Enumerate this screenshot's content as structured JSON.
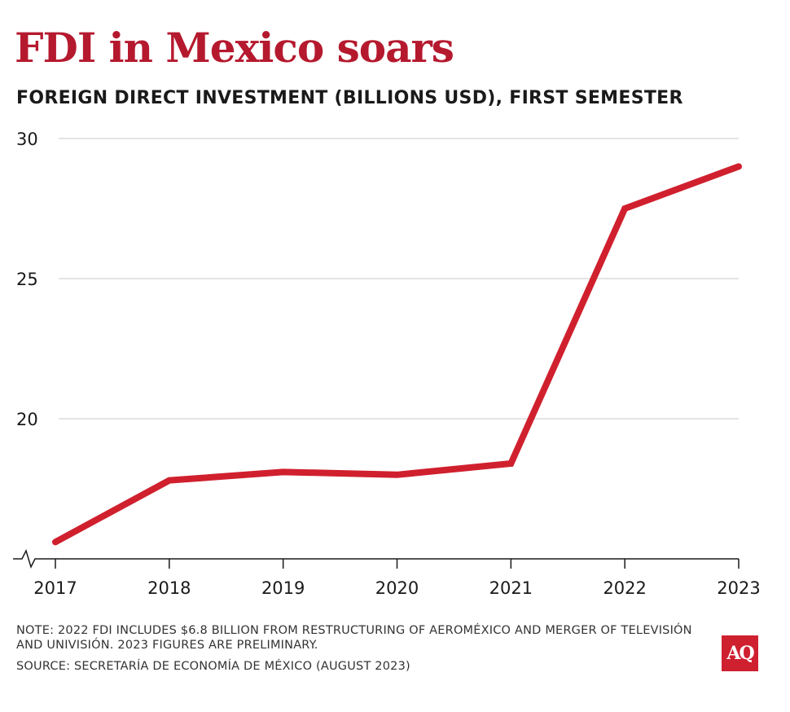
{
  "header": {
    "title": "FDI in Mexico soars",
    "subtitle": "FOREIGN DIRECT INVESTMENT (BILLIONS USD), FIRST SEMESTER"
  },
  "footer": {
    "note": "NOTE: 2022 FDI INCLUDES $6.8 BILLION FROM RESTRUCTURING OF AEROMÉXICO AND MERGER OF TELEVISIÓN AND UNIVISIÓN. 2023 FIGURES ARE PRELIMINARY.",
    "source": "SOURCE: SECRETARÍA DE ECONOMÍA DE MÉXICO (AUGUST 2023)",
    "logo_text": "AQ"
  },
  "colors": {
    "title": "#b5192e",
    "line": "#d0202e",
    "logo_bg": "#cf2030",
    "grid": "#c8c8c8"
  },
  "chart_data": {
    "type": "line",
    "title": "FDI in Mexico soars",
    "subtitle": "FOREIGN DIRECT INVESTMENT (BILLIONS USD), FIRST SEMESTER",
    "xlabel": "",
    "ylabel": "",
    "x": [
      "2017",
      "2018",
      "2019",
      "2020",
      "2021",
      "2022",
      "2023"
    ],
    "series": [
      {
        "values": [
          15.6,
          17.8,
          18.1,
          18.0,
          18.4,
          27.5,
          29.0
        ]
      }
    ],
    "yticks": [
      20,
      25,
      30
    ],
    "ylim": [
      15,
      30
    ],
    "y_axis_break": true,
    "grid": true,
    "legend": "none"
  }
}
